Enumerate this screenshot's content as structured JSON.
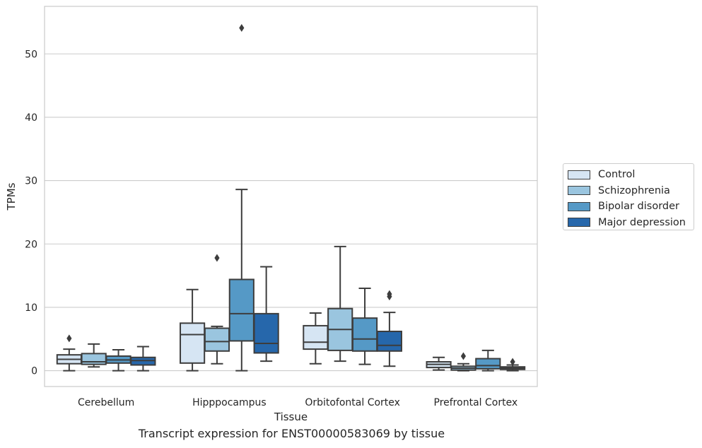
{
  "chart_data": {
    "type": "box",
    "title": "",
    "caption": "Transcript expression for ENST00000583069 by tissue",
    "xlabel": "Tissue",
    "ylabel": "TPMs",
    "ylim": [
      -2.5,
      57.5
    ],
    "yticks": [
      0,
      10,
      20,
      30,
      40,
      50
    ],
    "grid": "horizontal",
    "legend_position": "right",
    "categories": [
      "Cerebellum",
      "Hipppocampus",
      "Orbitofontal Cortex",
      "Prefrontal Cortex"
    ],
    "series": [
      {
        "name": "Control",
        "color": "#d6e5f3",
        "boxes": [
          {
            "whisker_low": 0.0,
            "q1": 1.1,
            "median": 1.8,
            "q3": 2.5,
            "whisker_high": 3.4,
            "outliers": [
              5.1
            ]
          },
          {
            "whisker_low": 0.0,
            "q1": 1.2,
            "median": 5.7,
            "q3": 7.5,
            "whisker_high": 12.8,
            "outliers": []
          },
          {
            "whisker_low": 1.1,
            "q1": 3.4,
            "median": 4.5,
            "q3": 7.1,
            "whisker_high": 9.1,
            "outliers": []
          },
          {
            "whisker_low": 0.1,
            "q1": 0.5,
            "median": 1.0,
            "q3": 1.4,
            "whisker_high": 2.1,
            "outliers": []
          }
        ]
      },
      {
        "name": "Schizophrenia",
        "color": "#9ac5df",
        "boxes": [
          {
            "whisker_low": 0.6,
            "q1": 1.0,
            "median": 1.4,
            "q3": 2.7,
            "whisker_high": 4.2,
            "outliers": []
          },
          {
            "whisker_low": 1.1,
            "q1": 3.1,
            "median": 4.6,
            "q3": 6.7,
            "whisker_high": 7.0,
            "outliers": [
              17.8
            ]
          },
          {
            "whisker_low": 1.5,
            "q1": 3.2,
            "median": 6.5,
            "q3": 9.8,
            "whisker_high": 19.6,
            "outliers": []
          },
          {
            "whisker_low": 0.0,
            "q1": 0.1,
            "median": 0.4,
            "q3": 0.7,
            "whisker_high": 1.1,
            "outliers": [
              2.3
            ]
          }
        ]
      },
      {
        "name": "Bipolar disorder",
        "color": "#5599c6",
        "boxes": [
          {
            "whisker_low": 0.0,
            "q1": 1.2,
            "median": 1.7,
            "q3": 2.3,
            "whisker_high": 3.3,
            "outliers": []
          },
          {
            "whisker_low": 0.0,
            "q1": 4.7,
            "median": 9.0,
            "q3": 14.4,
            "whisker_high": 28.6,
            "outliers": [
              54.1
            ]
          },
          {
            "whisker_low": 1.0,
            "q1": 3.1,
            "median": 5.0,
            "q3": 8.3,
            "whisker_high": 13.0,
            "outliers": []
          },
          {
            "whisker_low": 0.0,
            "q1": 0.3,
            "median": 0.8,
            "q3": 1.9,
            "whisker_high": 3.2,
            "outliers": []
          }
        ]
      },
      {
        "name": "Major depression",
        "color": "#2667ab",
        "boxes": [
          {
            "whisker_low": 0.0,
            "q1": 0.9,
            "median": 1.6,
            "q3": 2.1,
            "whisker_high": 3.8,
            "outliers": []
          },
          {
            "whisker_low": 1.5,
            "q1": 2.8,
            "median": 4.3,
            "q3": 9.0,
            "whisker_high": 16.4,
            "outliers": []
          },
          {
            "whisker_low": 0.7,
            "q1": 3.1,
            "median": 4.0,
            "q3": 6.2,
            "whisker_high": 9.2,
            "outliers": [
              11.7,
              12.1
            ]
          },
          {
            "whisker_low": 0.0,
            "q1": 0.2,
            "median": 0.4,
            "q3": 0.6,
            "whisker_high": 0.9,
            "outliers": [
              1.4
            ]
          }
        ]
      }
    ]
  }
}
